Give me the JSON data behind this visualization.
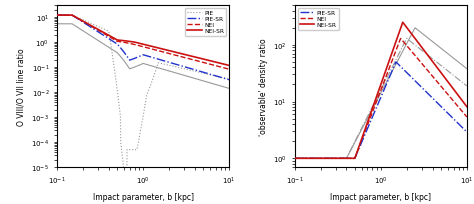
{
  "left_xlabel": "Impact parameter, b [kpc]",
  "left_ylabel": "O VIII/O VII line ratio",
  "right_xlabel": "Impact parameter, b [kpc]",
  "right_ylabel": "'observable' density ratio",
  "left_xlim": [
    0.1,
    10
  ],
  "left_ylim": [
    1e-05,
    30
  ],
  "right_xlim": [
    0.1,
    10
  ],
  "right_ylim": [
    0.7,
    500
  ],
  "left_legend": [
    "PIE",
    "PIE-SR",
    "NEI",
    "NEI-SR"
  ],
  "right_legend": [
    "PIE-SR",
    "NEI",
    "NEI-SR"
  ],
  "blue": "#2233cc",
  "red": "#cc1111",
  "gray": "#999999"
}
